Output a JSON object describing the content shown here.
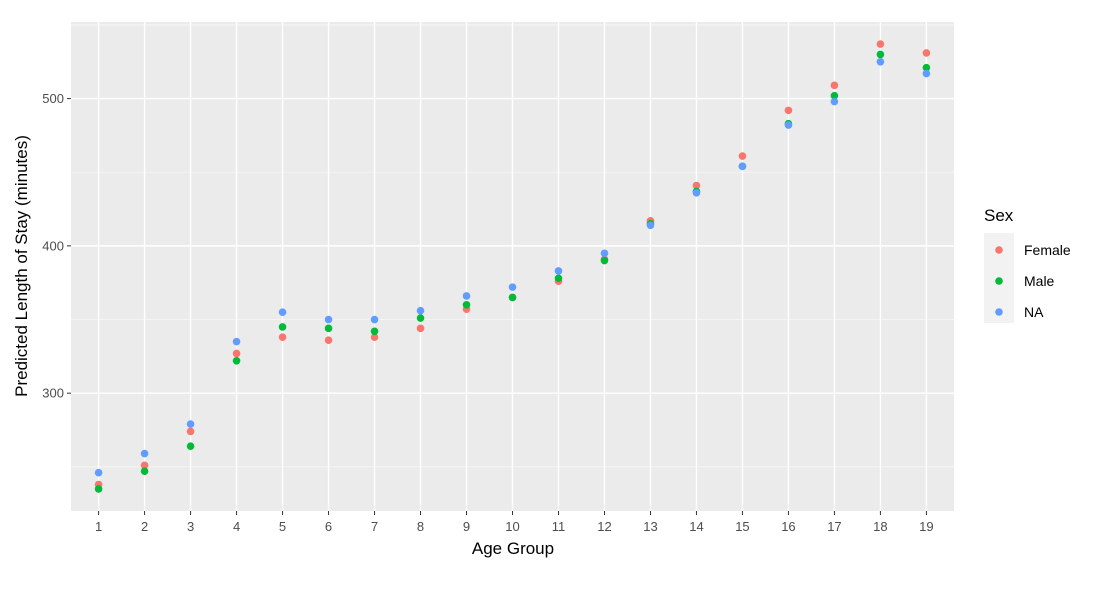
{
  "chart_data": {
    "type": "scatter",
    "title": "",
    "xlabel": "Age Group",
    "ylabel": "Predicted Length of Stay (minutes)",
    "x": [
      1,
      2,
      3,
      4,
      5,
      6,
      7,
      8,
      9,
      10,
      11,
      12,
      13,
      14,
      15,
      16,
      17,
      18,
      19
    ],
    "x_tick_labels": [
      "1",
      "2",
      "3",
      "4",
      "5",
      "6",
      "7",
      "8",
      "9",
      "10",
      "11",
      "12",
      "13",
      "14",
      "15",
      "16",
      "17",
      "18",
      "19"
    ],
    "y_ticks": [
      300,
      400,
      500
    ],
    "y_tick_labels": [
      "300",
      "400",
      "500"
    ],
    "xlim": [
      0.4,
      19.6
    ],
    "ylim": [
      220,
      552
    ],
    "grid": true,
    "panel_background": "#ebebeb",
    "legend": {
      "title": "Sex",
      "position": "right"
    },
    "series": [
      {
        "name": "Female",
        "color": "#F8766D",
        "values": [
          238,
          251,
          274,
          327,
          338,
          336,
          338,
          344,
          357,
          365,
          376,
          391,
          417,
          441,
          461,
          492,
          509,
          537,
          531
        ]
      },
      {
        "name": "Male",
        "color": "#00BA38",
        "values": [
          235,
          247,
          264,
          322,
          345,
          344,
          342,
          351,
          360,
          365,
          378,
          390,
          415,
          437,
          454,
          483,
          502,
          530,
          521
        ]
      },
      {
        "name": "NA",
        "color": "#619CFF",
        "values": [
          246,
          259,
          279,
          335,
          355,
          350,
          350,
          356,
          366,
          372,
          383,
          395,
          414,
          436,
          454,
          482,
          498,
          525,
          517
        ]
      }
    ]
  }
}
